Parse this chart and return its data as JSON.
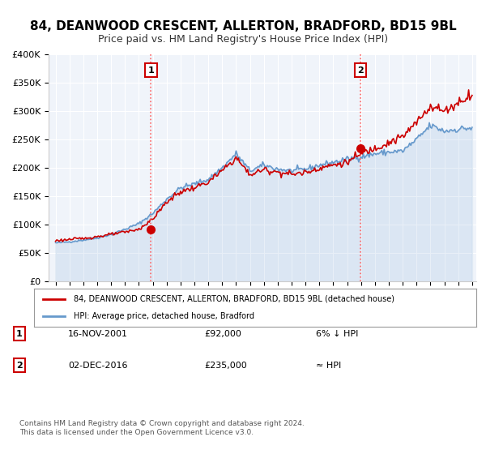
{
  "title": "84, DEANWOOD CRESCENT, ALLERTON, BRADFORD, BD15 9BL",
  "subtitle": "Price paid vs. HM Land Registry's House Price Index (HPI)",
  "title_fontsize": 11,
  "subtitle_fontsize": 9,
  "background_color": "#ffffff",
  "plot_bg_color": "#f0f4fa",
  "grid_color": "#ffffff",
  "hpi_color": "#6699cc",
  "price_color": "#cc0000",
  "legend_label_price": "84, DEANWOOD CRESCENT, ALLERTON, BRADFORD, BD15 9BL (detached house)",
  "legend_label_hpi": "HPI: Average price, detached house, Bradford",
  "marker1_date": "2001-11-16",
  "marker1_value": 92000,
  "marker1_label": "1",
  "marker2_date": "2016-12-02",
  "marker2_value": 235000,
  "marker2_label": "2",
  "annotation1_date": "16-NOV-2001",
  "annotation1_price": "£92,000",
  "annotation1_rel": "6% ↓ HPI",
  "annotation2_date": "02-DEC-2016",
  "annotation2_price": "£235,000",
  "annotation2_rel": "≈ HPI",
  "ylim": [
    0,
    400000
  ],
  "yticks": [
    0,
    50000,
    100000,
    150000,
    200000,
    250000,
    300000,
    350000,
    400000
  ],
  "ytick_labels": [
    "£0",
    "£50K",
    "£100K",
    "£150K",
    "£200K",
    "£250K",
    "£300K",
    "£350K",
    "£400K"
  ],
  "footer": "Contains HM Land Registry data © Crown copyright and database right 2024.\nThis data is licensed under the Open Government Licence v3.0.",
  "vline_color": "#ff6666",
  "vline_style": ":",
  "box_color": "#cc0000"
}
